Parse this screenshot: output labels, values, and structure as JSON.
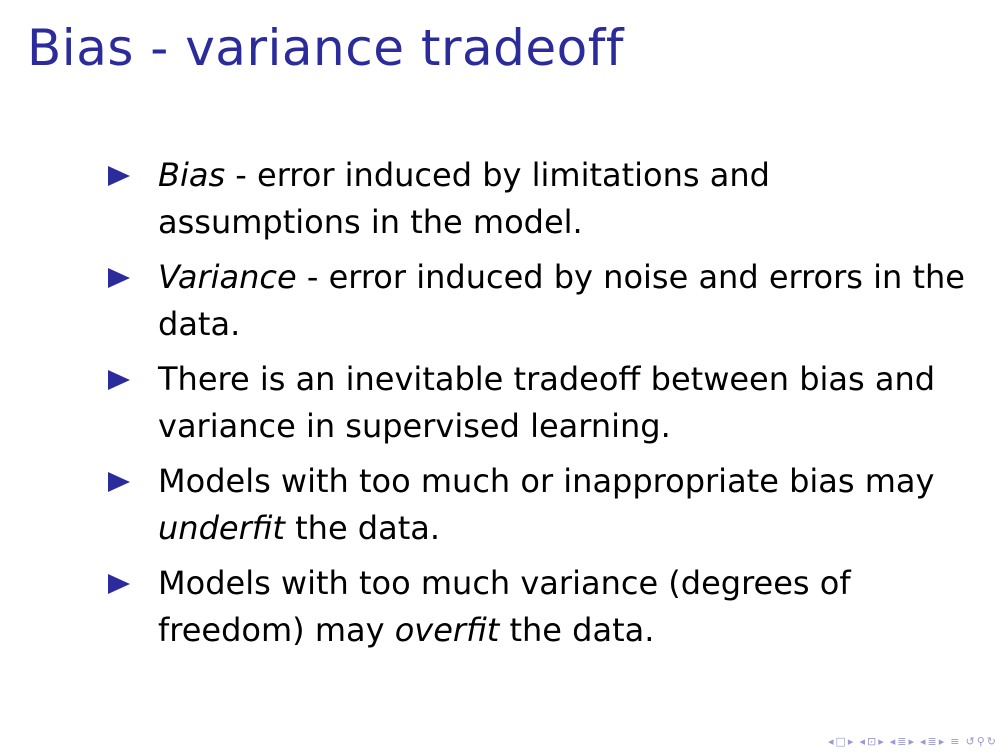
{
  "colors": {
    "title": "#2b2b9c",
    "bullet_marker": "#2b2b9c",
    "text": "#000000",
    "nav": "#9a9ad0"
  },
  "slide": {
    "title": "Bias - variance tradeoff",
    "bullets": [
      [
        {
          "text": "Bias",
          "italic": true
        },
        {
          "text": " - error induced by limitations and assumptions in the model.",
          "italic": false
        }
      ],
      [
        {
          "text": "Variance",
          "italic": true
        },
        {
          "text": " - error induced by noise and errors in the data.",
          "italic": false
        }
      ],
      [
        {
          "text": "There is an inevitable tradeoff between bias and variance in supervised learning.",
          "italic": false
        }
      ],
      [
        {
          "text": "Models with too much or inappropriate bias may ",
          "italic": false
        },
        {
          "text": "underfit",
          "italic": true
        },
        {
          "text": " the data.",
          "italic": false
        }
      ],
      [
        {
          "text": "Models with too much variance (degrees of freedom) may ",
          "italic": false
        },
        {
          "text": "overfit",
          "italic": true
        },
        {
          "text": " the data.",
          "italic": false
        }
      ]
    ]
  },
  "nav": {
    "icons": [
      {
        "name": "prev-frame-icon",
        "glyph": "◂"
      },
      {
        "name": "frame-icon",
        "glyph": "□"
      },
      {
        "name": "next-frame-icon",
        "glyph": "▸"
      },
      {
        "name": "prev-subsection-icon",
        "glyph": "◂"
      },
      {
        "name": "subsection-icon",
        "glyph": "⊡"
      },
      {
        "name": "next-subsection-icon",
        "glyph": "▸"
      },
      {
        "name": "prev-section-icon",
        "glyph": "◂"
      },
      {
        "name": "section-icon",
        "glyph": "≣"
      },
      {
        "name": "next-section-icon",
        "glyph": "▸"
      },
      {
        "name": "prev-slide-icon",
        "glyph": "◂"
      },
      {
        "name": "document-icon",
        "glyph": "≣"
      },
      {
        "name": "next-slide-icon",
        "glyph": "▸"
      },
      {
        "name": "appendix-icon",
        "glyph": "≡"
      },
      {
        "name": "undo-icon",
        "glyph": "↺"
      },
      {
        "name": "search-icon",
        "glyph": "⚲"
      },
      {
        "name": "redo-icon",
        "glyph": "↻"
      }
    ]
  }
}
